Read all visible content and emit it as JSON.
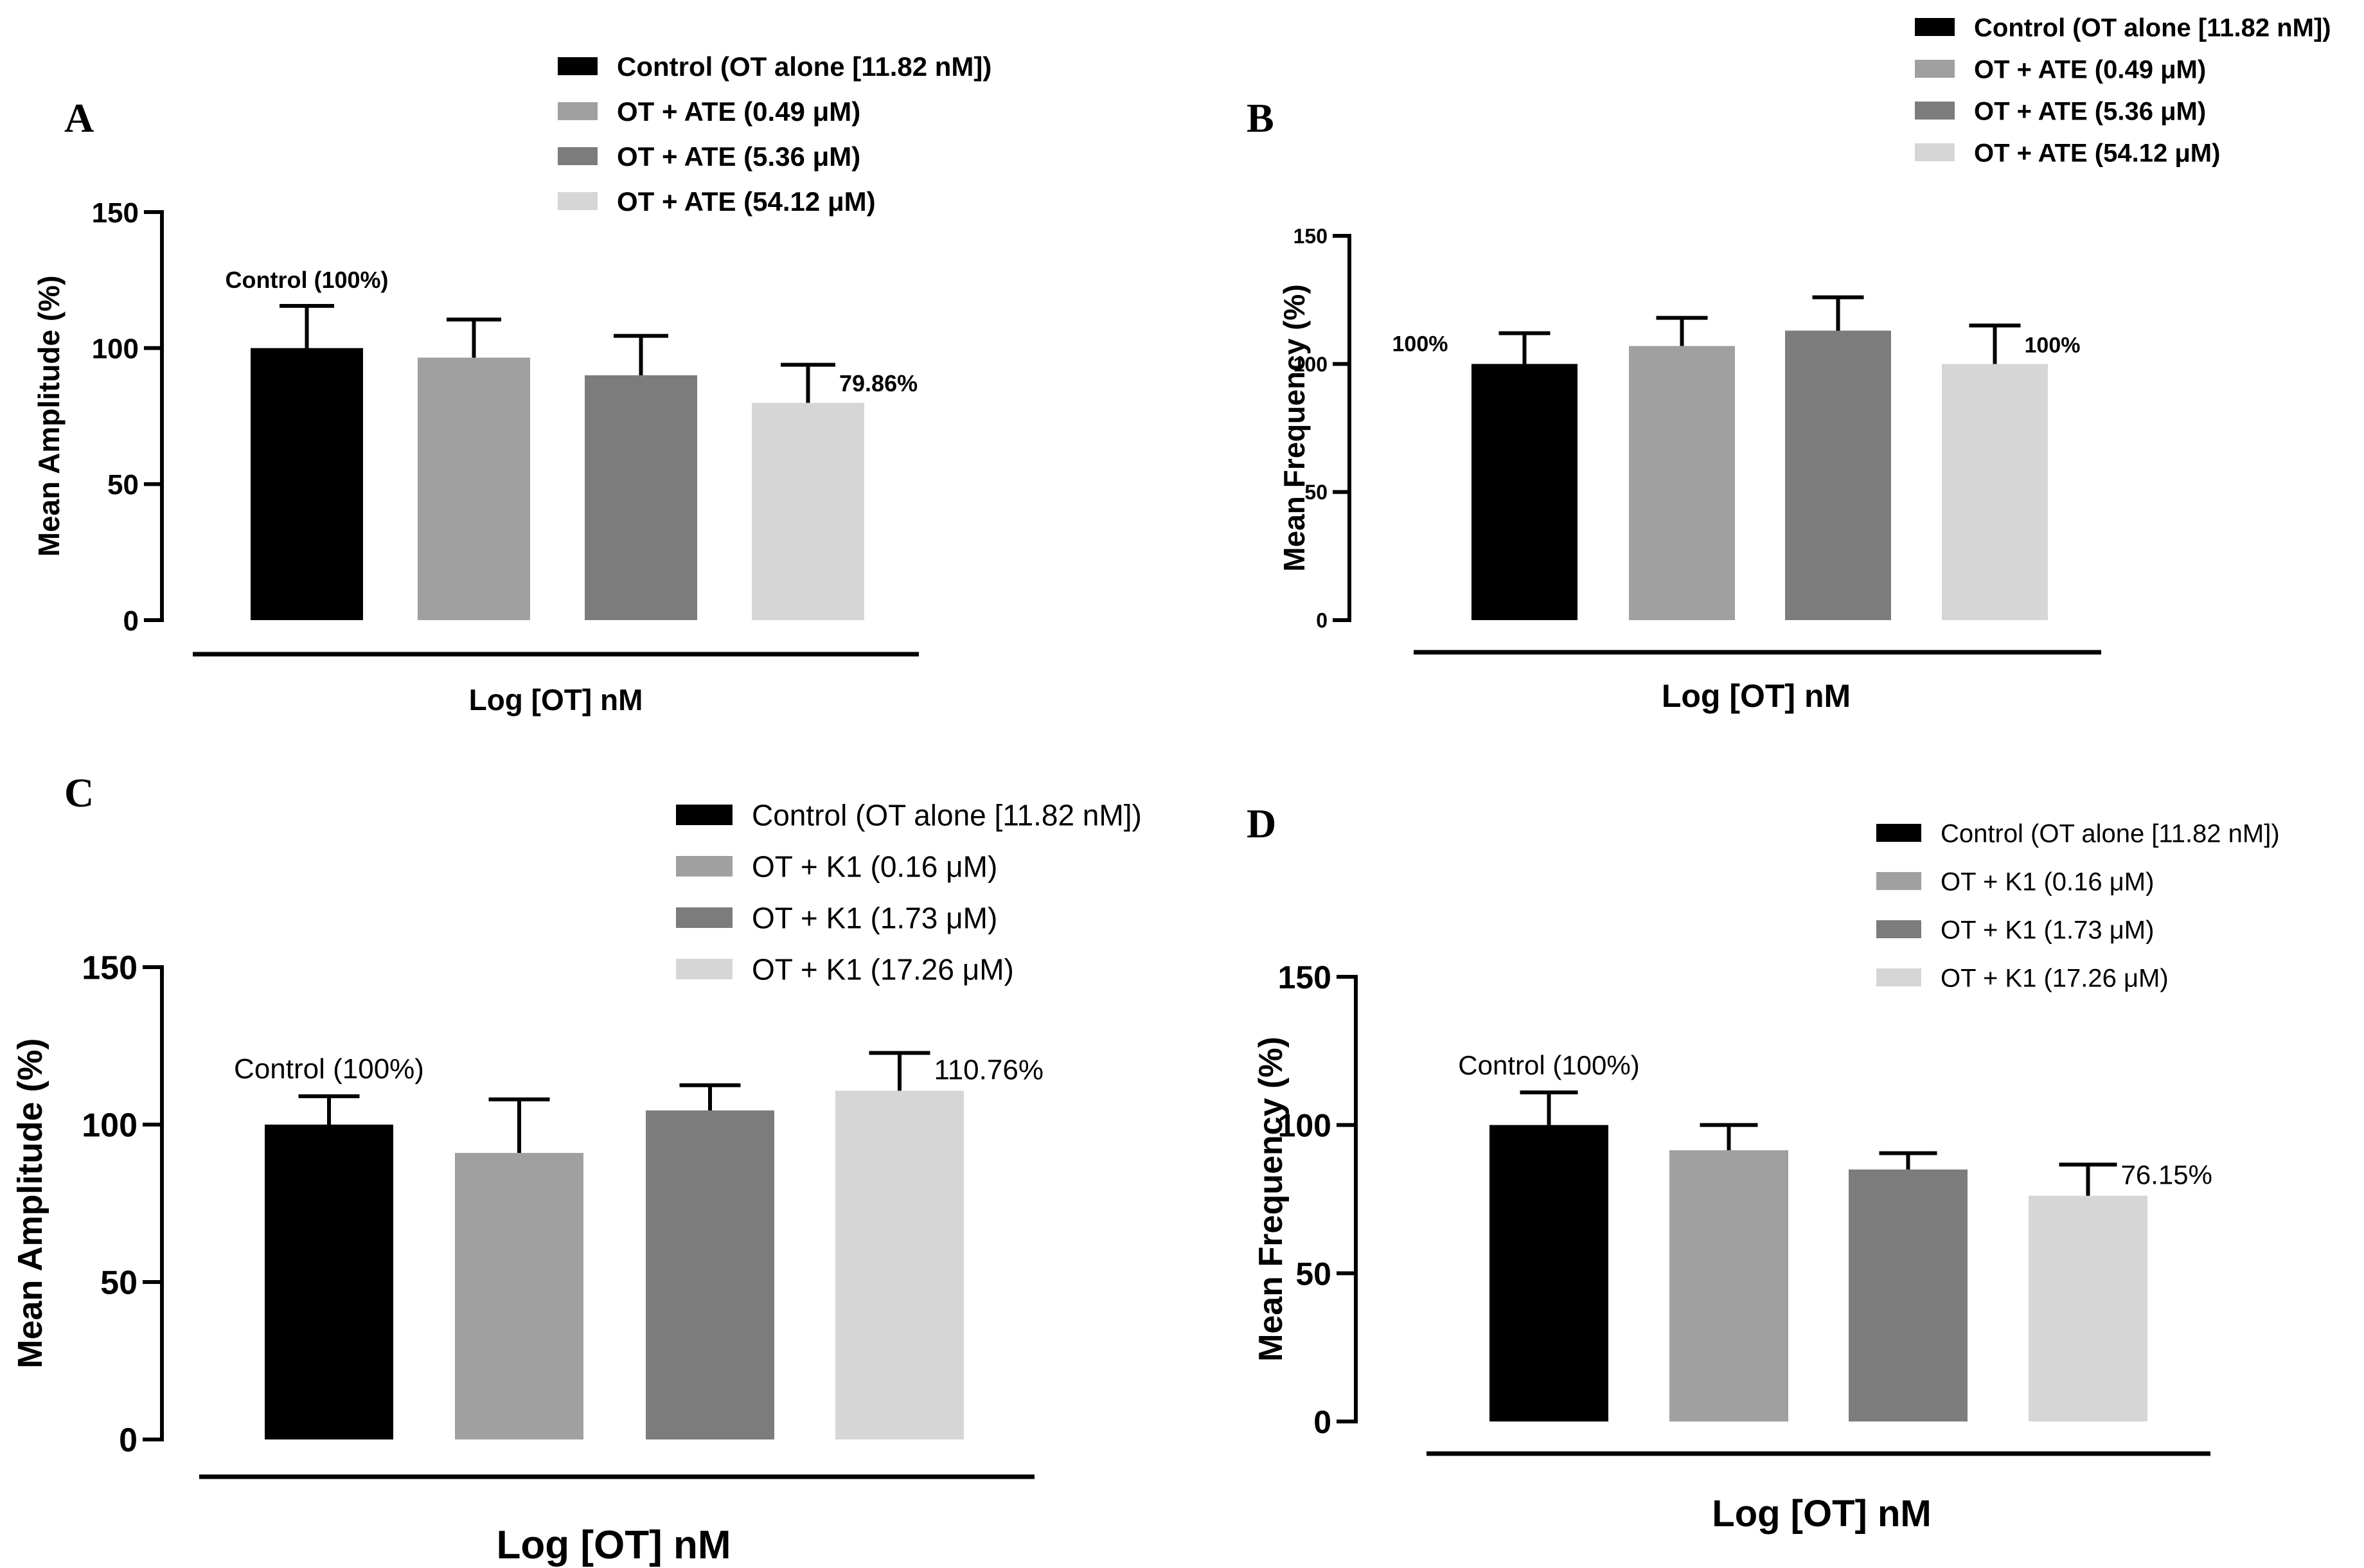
{
  "chart_data": [
    {
      "type": "bar",
      "panel": "A",
      "ylabel": "Mean Amplitude (%)",
      "xlabel": "Log [OT] nM",
      "ylim": [
        0,
        150
      ],
      "yticks": [
        "0",
        "50",
        "100",
        "150"
      ],
      "legend": {
        "placement": "top-right",
        "entries": [
          {
            "label": "Control (OT alone [11.82 nM])",
            "color": "#000000"
          },
          {
            "label": "OT + ATE (0.49 μM)",
            "color": "#a0a0a0"
          },
          {
            "label": "OT + ATE (5.36 μM)",
            "color": "#7c7c7c"
          },
          {
            "label": "OT + ATE (54.12 μM)",
            "color": "#d6d6d6"
          }
        ]
      },
      "values": [
        100,
        96.5,
        90,
        79.86
      ],
      "errors": [
        15.5,
        14,
        14.5,
        14
      ],
      "annotations": [
        {
          "bar": 0,
          "text": "Control (100%)",
          "pos": "above"
        },
        {
          "bar": 3,
          "text": "79.86%",
          "pos": "right"
        }
      ]
    },
    {
      "type": "bar",
      "panel": "B",
      "ylabel": "Mean Frequency (%)",
      "xlabel": "Log [OT] nM",
      "ylim": [
        0,
        150
      ],
      "yticks": [
        "0",
        "50",
        "100",
        "150"
      ],
      "legend": {
        "placement": "top-right",
        "entries": [
          {
            "label": "Control (OT alone [11.82 nM])",
            "color": "#000000"
          },
          {
            "label": "OT + ATE (0.49 μM)",
            "color": "#a0a0a0"
          },
          {
            "label": "OT + ATE (5.36 μM)",
            "color": "#7c7c7c"
          },
          {
            "label": "OT + ATE (54.12 μM)",
            "color": "#d6d6d6"
          }
        ]
      },
      "values": [
        100,
        107,
        113,
        100
      ],
      "errors": [
        12,
        11,
        13,
        15
      ],
      "annotations": [
        {
          "bar": 0,
          "text": "100%",
          "pos": "left"
        },
        {
          "bar": 3,
          "text": "100%",
          "pos": "right"
        }
      ]
    },
    {
      "type": "bar",
      "panel": "C",
      "ylabel": "Mean Amplitude (%)",
      "xlabel": "Log [OT] nM",
      "ylim": [
        0,
        150
      ],
      "yticks": [
        "0",
        "50",
        "100",
        "150"
      ],
      "legend": {
        "placement": "top-right",
        "entries": [
          {
            "label": "Control (OT alone [11.82 nM])",
            "color": "#000000"
          },
          {
            "label": "OT + K1 (0.16 μM)",
            "color": "#a0a0a0"
          },
          {
            "label": "OT + K1 (1.73 μM)",
            "color": "#7c7c7c"
          },
          {
            "label": "OT + K1 (17.26 μM)",
            "color": "#d6d6d6"
          }
        ]
      },
      "values": [
        100,
        91,
        104.5,
        110.76
      ],
      "errors": [
        9,
        17,
        8,
        12
      ],
      "annotations": [
        {
          "bar": 0,
          "text": "Control (100%)",
          "pos": "above"
        },
        {
          "bar": 3,
          "text": "110.76%",
          "pos": "right"
        }
      ]
    },
    {
      "type": "bar",
      "panel": "D",
      "ylabel": "Mean Frequency (%)",
      "xlabel": "Log [OT] nM",
      "ylim": [
        0,
        150
      ],
      "yticks": [
        "0",
        "50",
        "100",
        "150"
      ],
      "legend": {
        "placement": "top-right",
        "entries": [
          {
            "label": "Control (OT alone [11.82 nM])",
            "color": "#000000"
          },
          {
            "label": "OT + K1 (0.16 μM)",
            "color": "#a0a0a0"
          },
          {
            "label": "OT + K1 (1.73 μM)",
            "color": "#7c7c7c"
          },
          {
            "label": "OT + K1 (17.26 μM)",
            "color": "#d6d6d6"
          }
        ]
      },
      "values": [
        100,
        91.5,
        85,
        76.15
      ],
      "errors": [
        11,
        8.5,
        5.5,
        10.5
      ],
      "annotations": [
        {
          "bar": 0,
          "text": "Control (100%)",
          "pos": "above"
        },
        {
          "bar": 3,
          "text": "76.15%",
          "pos": "right"
        }
      ]
    }
  ]
}
